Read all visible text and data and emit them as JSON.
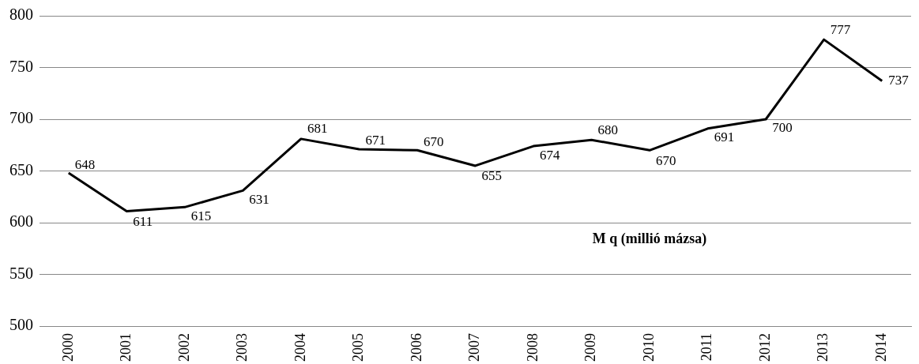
{
  "chart_data": {
    "type": "line",
    "categories": [
      "2000",
      "2001",
      "2002",
      "2003",
      "2004",
      "2005",
      "2006",
      "2007",
      "2008",
      "2009",
      "2010",
      "2011",
      "2012",
      "2013",
      "2014"
    ],
    "series": [
      {
        "color": "#000000",
        "values": [
          648,
          611,
          615,
          631,
          681,
          671,
          670,
          655,
          674,
          680,
          670,
          691,
          700,
          777,
          737
        ]
      }
    ],
    "ylim": [
      500,
      800
    ],
    "yticks": [
      500,
      550,
      600,
      650,
      700,
      750,
      800
    ],
    "grid": "y",
    "data_labels": true,
    "marker": "none",
    "line_style": "solid",
    "legend": false,
    "annotations": [
      "M q (millió mázsa)"
    ]
  }
}
